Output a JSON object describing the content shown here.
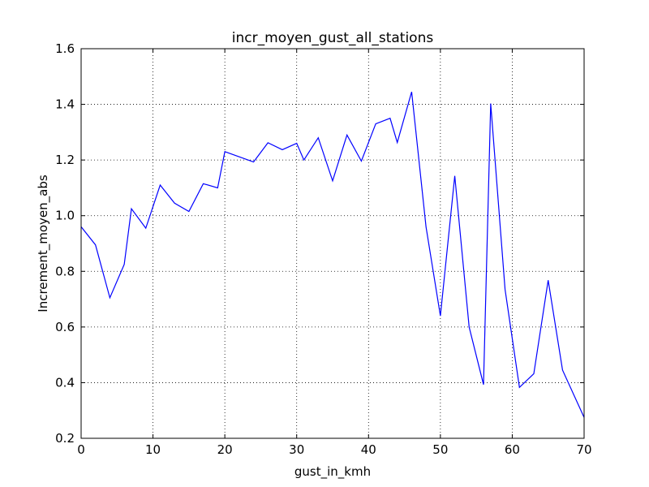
{
  "chart_data": {
    "type": "line",
    "title": "incr_moyen_gust_all_stations",
    "xlabel": "gust_in_kmh",
    "ylabel": "Increment_moyen_abs",
    "xlim": [
      0,
      70
    ],
    "ylim": [
      0.2,
      1.6
    ],
    "xticks": [
      0,
      10,
      20,
      30,
      40,
      50,
      60,
      70
    ],
    "yticks": [
      0.2,
      0.4,
      0.6,
      0.8,
      1.0,
      1.2,
      1.4,
      1.6
    ],
    "xtick_labels": [
      "0",
      "10",
      "20",
      "30",
      "40",
      "50",
      "60",
      "70"
    ],
    "ytick_labels": [
      "0.2",
      "0.4",
      "0.6",
      "0.8",
      "1.0",
      "1.2",
      "1.4",
      "1.6"
    ],
    "grid": true,
    "series": [
      {
        "color": "#0000ff",
        "x": [
          0,
          2,
          4,
          6,
          7,
          9,
          11,
          13,
          15,
          17,
          19,
          20,
          24,
          26,
          28,
          30,
          31,
          33,
          35,
          37,
          39,
          41,
          43,
          44,
          46,
          48,
          50,
          52,
          54,
          56,
          57,
          59,
          61,
          63,
          65,
          67,
          70
        ],
        "y": [
          0.96,
          0.895,
          0.705,
          0.825,
          1.025,
          0.955,
          1.11,
          1.045,
          1.015,
          1.115,
          1.1,
          1.23,
          1.193,
          1.262,
          1.237,
          1.26,
          1.2,
          1.28,
          1.125,
          1.29,
          1.196,
          1.33,
          1.35,
          1.263,
          1.445,
          0.96,
          0.64,
          1.143,
          0.6,
          0.393,
          1.403,
          0.735,
          0.383,
          0.432,
          0.768,
          0.445,
          0.275
        ]
      }
    ]
  }
}
